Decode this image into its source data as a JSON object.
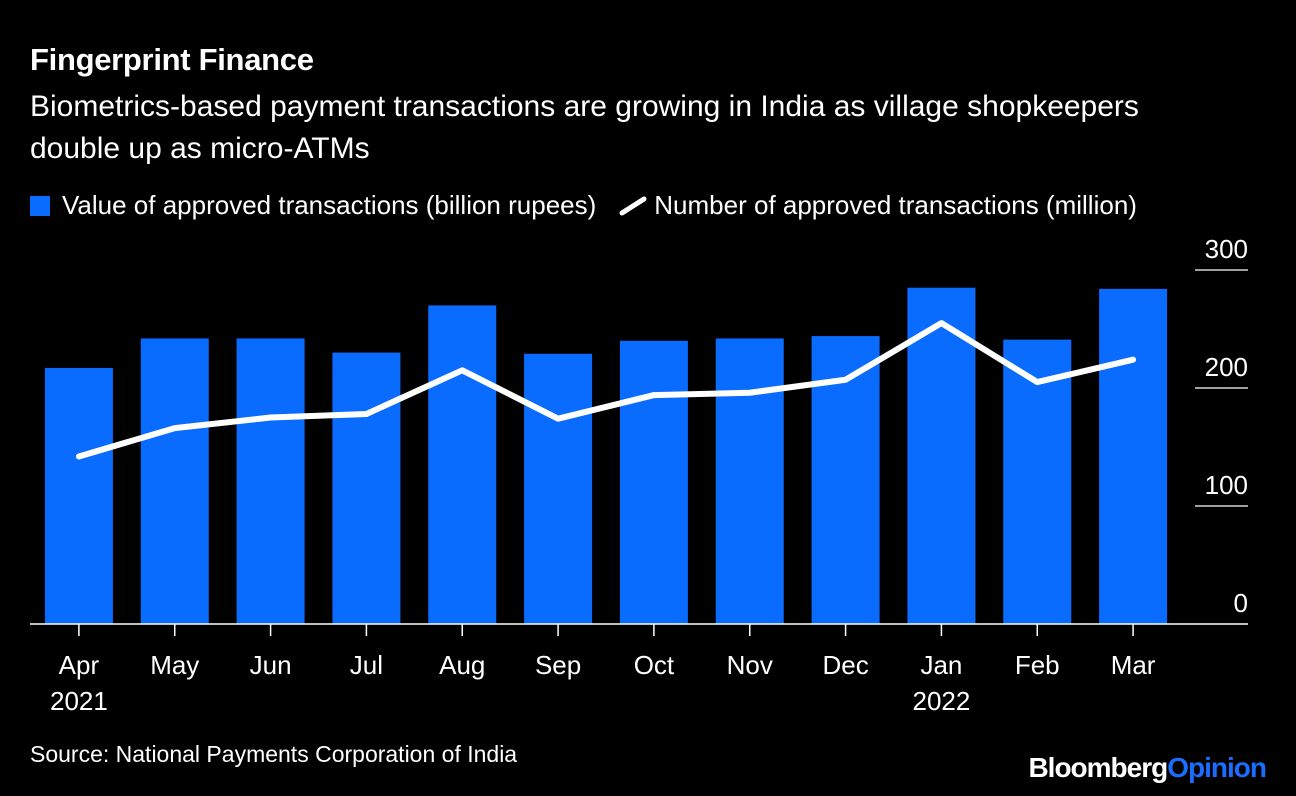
{
  "header": {
    "title": "Fingerprint Finance",
    "subtitle": "Biometrics-based payment transactions are growing in India as village shopkeepers double up as micro-ATMs"
  },
  "legend": {
    "bar_label": "Value of approved transactions (billion rupees)",
    "line_label": "Number of approved transactions (million)"
  },
  "footer": {
    "source": "Source: National Payments Corporation of India",
    "brand_main": "Bloomberg",
    "brand_accent": "Opinion"
  },
  "colors": {
    "bar": "#0a6cff",
    "line": "#ffffff",
    "grid": "#ffffff",
    "background": "#000000",
    "brand_accent": "#1a6dff"
  },
  "chart_data": {
    "type": "bar",
    "title": "Fingerprint Finance",
    "categories": [
      "Apr",
      "May",
      "Jun",
      "Jul",
      "Aug",
      "Sep",
      "Oct",
      "Nov",
      "Dec",
      "Jan",
      "Feb",
      "Mar"
    ],
    "year_labels": [
      "2021",
      "",
      "",
      "",
      "",
      "",
      "",
      "",
      "",
      "2022",
      "",
      ""
    ],
    "series": [
      {
        "name": "Value of approved transactions (billion rupees)",
        "kind": "bar",
        "values": [
          217,
          242,
          242,
          230,
          270,
          229,
          240,
          242,
          244,
          285,
          241,
          284
        ]
      },
      {
        "name": "Number of approved transactions (million)",
        "kind": "line",
        "values": [
          142,
          166,
          175,
          178,
          215,
          174,
          194,
          196,
          207,
          255,
          205,
          224
        ]
      }
    ],
    "ylim": [
      0,
      300
    ],
    "yticks": [
      0,
      100,
      200,
      300
    ],
    "y_axis_side": "right",
    "xlabel": "",
    "ylabel": ""
  }
}
